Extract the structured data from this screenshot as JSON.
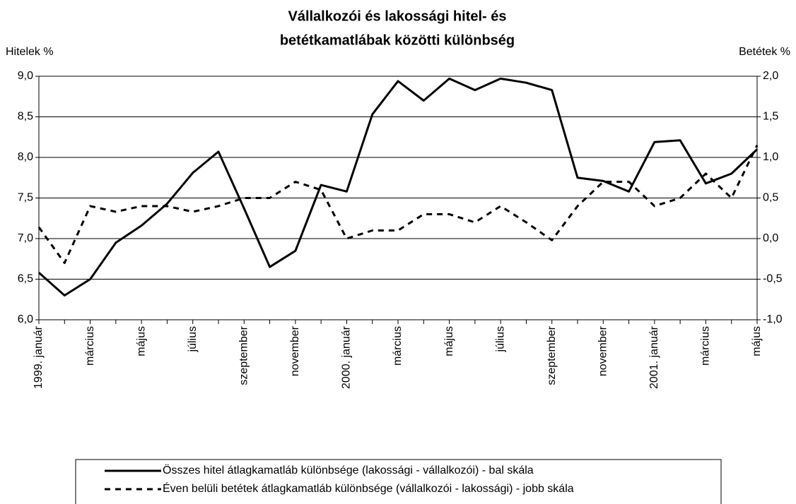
{
  "chart_data": {
    "type": "line",
    "title": [
      "Vállalkozói és lakossági hitel- és",
      "betétkamatlábak közötti különbség"
    ],
    "y_label": "Hitelek %",
    "y2_label": "Betétek %",
    "categories": [
      "1999. január",
      null,
      "március",
      null,
      "május",
      null,
      "július",
      null,
      "szeptember",
      null,
      "november",
      null,
      "2000. január",
      null,
      "március",
      null,
      "május",
      null,
      "július",
      null,
      "szeptember",
      null,
      "november",
      null,
      "2001. január",
      null,
      "március",
      null,
      "május"
    ],
    "series": [
      {
        "name": "Összes hitel átlagkamatláb különbsége (lakossági - vállalkozói)  - bal skála",
        "color": "#000000",
        "style": "solid",
        "axis": "y",
        "values": [
          6.58,
          6.3,
          6.5,
          6.95,
          7.16,
          7.43,
          7.81,
          8.07,
          7.37,
          6.65,
          6.85,
          7.66,
          7.58,
          8.53,
          8.94,
          8.7,
          8.97,
          8.83,
          8.97,
          8.92,
          8.83,
          7.75,
          7.71,
          7.58,
          8.19,
          8.21,
          7.68,
          7.8,
          8.1
        ]
      },
      {
        "name": "Éven belüli betétek átlagkamatláb különbsége (vállalkozói - lakossági) - jobb skála",
        "color": "#000000",
        "style": "dashed",
        "axis": "y2",
        "values": [
          0.14,
          -0.3,
          0.4,
          0.33,
          0.4,
          0.4,
          0.33,
          0.4,
          0.5,
          0.5,
          0.7,
          0.6,
          0.0,
          0.1,
          0.1,
          0.3,
          0.3,
          0.2,
          0.4,
          0.2,
          -0.02,
          0.4,
          0.7,
          0.7,
          0.4,
          0.5,
          0.8,
          0.5,
          1.15
        ]
      }
    ],
    "ylim": [
      6,
      9
    ],
    "yticks": [
      {
        "value": 6,
        "label": "6,0"
      },
      {
        "value": 6.5,
        "label": "6,5"
      },
      {
        "value": 7,
        "label": "7,0"
      },
      {
        "value": 7.5,
        "label": "7,5"
      },
      {
        "value": 8,
        "label": "8,0"
      },
      {
        "value": 8.5,
        "label": "8,5"
      },
      {
        "value": 9,
        "label": "9,0"
      }
    ],
    "y2lim": [
      -1,
      2
    ],
    "y2ticks": [
      {
        "value": -1,
        "label": "-1,0"
      },
      {
        "value": -0.5,
        "label": "-0,5"
      },
      {
        "value": 0,
        "label": "0,0"
      },
      {
        "value": 0.5,
        "label": "0,5"
      },
      {
        "value": 1,
        "label": "1,0"
      },
      {
        "value": 1.5,
        "label": "1,5"
      },
      {
        "value": 2,
        "label": "2,0"
      }
    ],
    "grid": true
  }
}
